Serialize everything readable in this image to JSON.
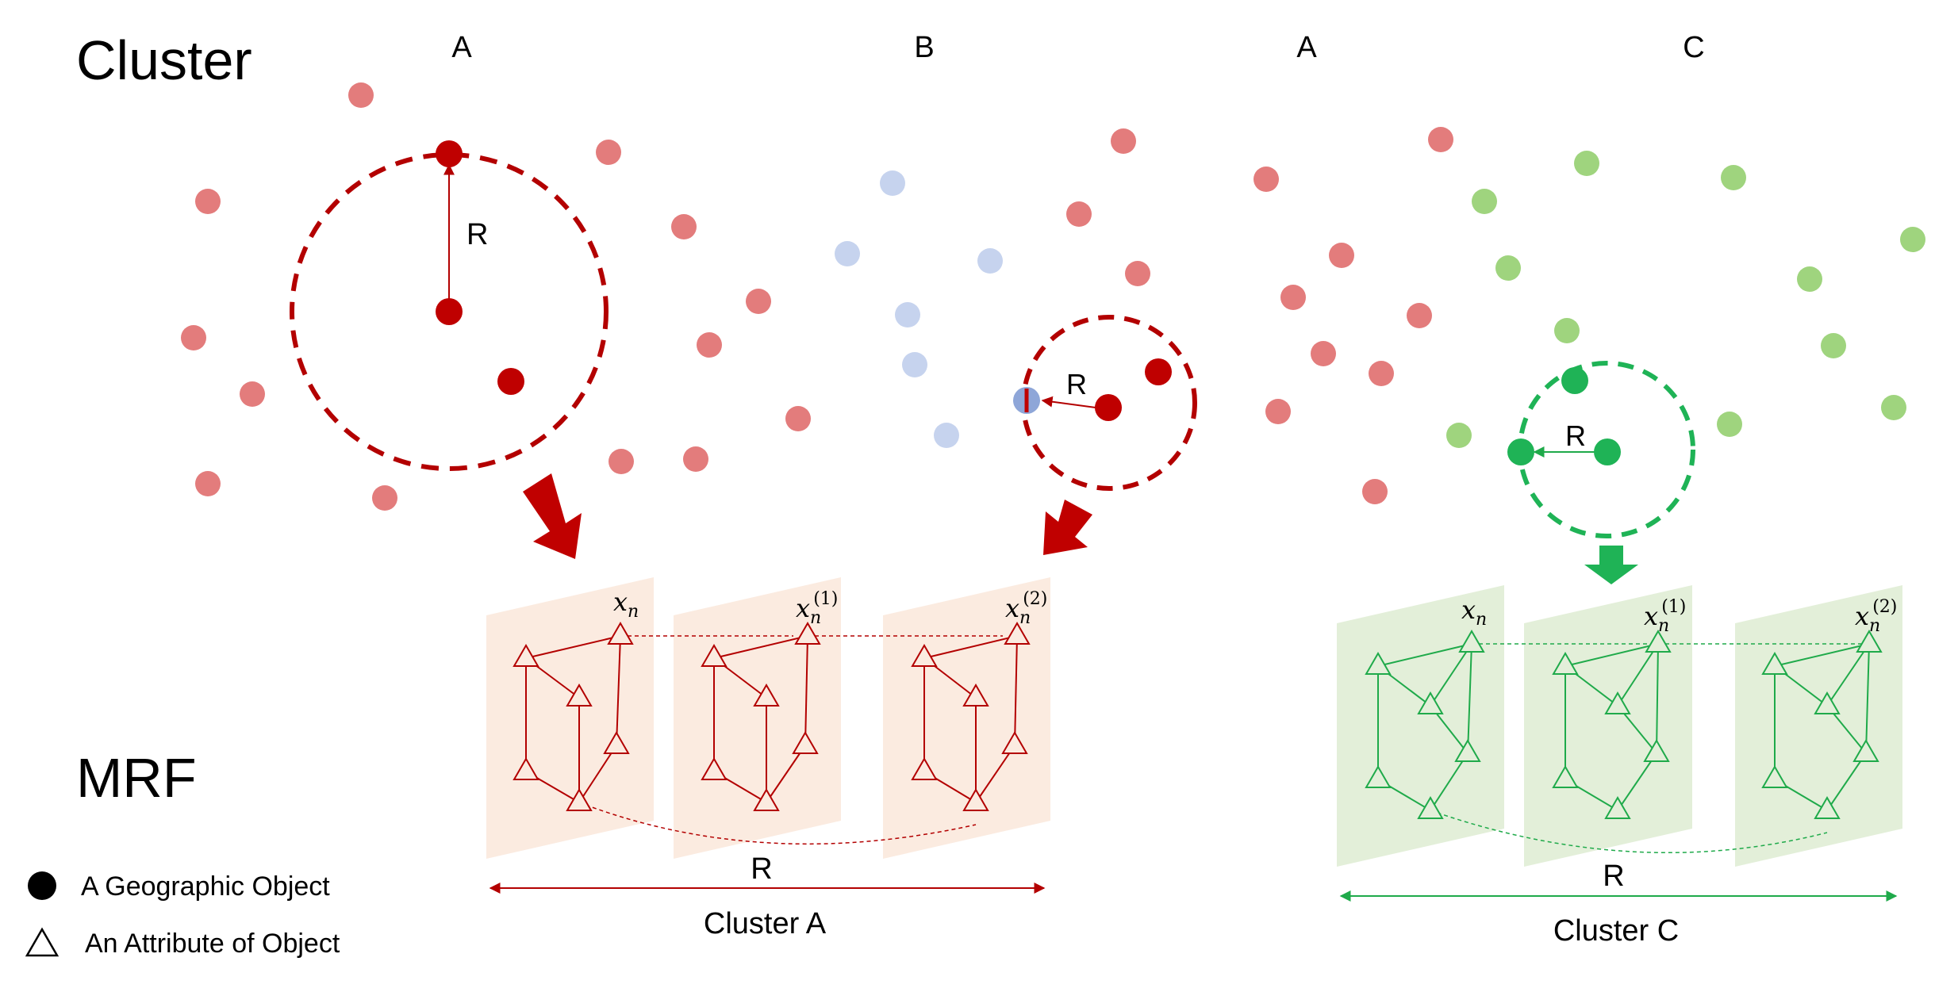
{
  "headings": {
    "cluster": "Cluster",
    "mrf": "MRF"
  },
  "region_labels": [
    "A",
    "B",
    "A",
    "C"
  ],
  "radius_label": "R",
  "panel_var": {
    "base": "x",
    "sub": "n",
    "sup1": "(1)",
    "sup2": "(2)"
  },
  "cluster_labels": {
    "a": "Cluster A",
    "c": "Cluster C"
  },
  "legend": {
    "geo_object": "A Geographic Object",
    "attribute": "An Attribute of Object"
  },
  "colors": {
    "dark_red": "#bf0000",
    "light_red": "#e37c7c",
    "light_blue": "#c6d3ee",
    "mixed_blue": "#8ea6d8",
    "dark_green": "#1fb356",
    "light_green": "#9fd47e",
    "red_plane": "#fbebe0",
    "green_plane": "#e3efd9",
    "red_line": "#b30000",
    "green_line": "#1faa4a"
  },
  "icons": [
    "red-arrow-icon",
    "green-arrow-icon",
    "circle-icon",
    "triangle-icon"
  ]
}
